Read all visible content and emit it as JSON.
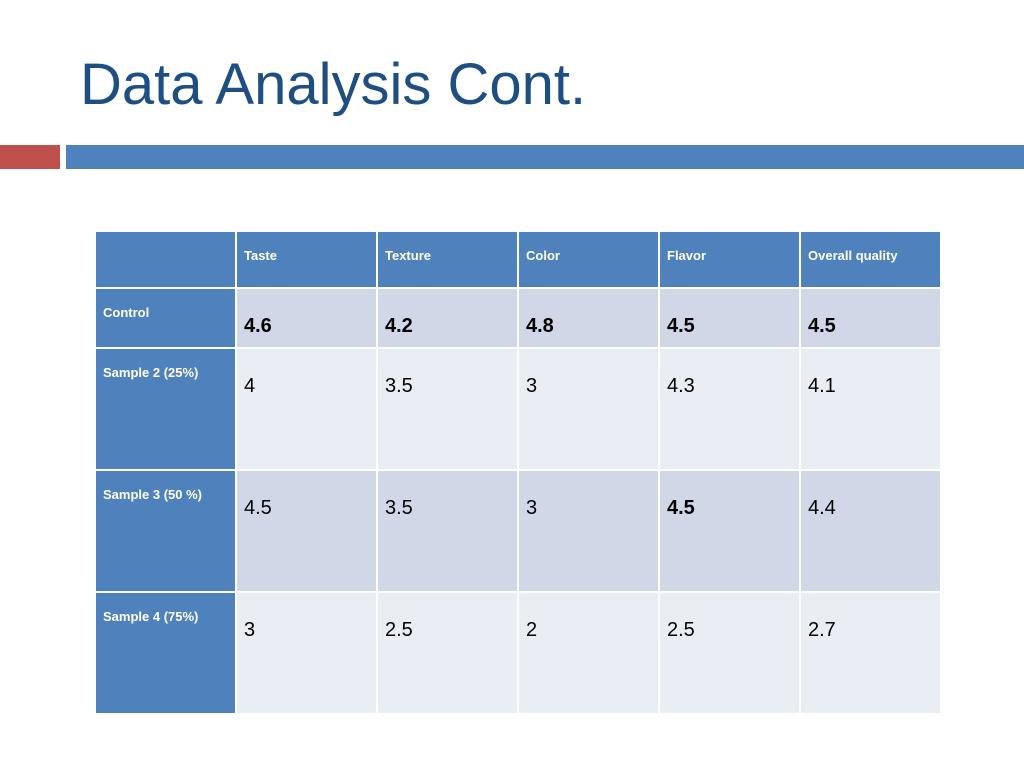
{
  "title": "Data Analysis Cont.",
  "colors": {
    "title": "#1f4e83",
    "accent_red": "#c0504d",
    "accent_blue": "#4f81bd",
    "row_dark": "#d0d8e8",
    "row_light": "#e9edf4"
  },
  "table": {
    "corner": "",
    "columns": [
      "Taste",
      "Texture",
      "Color",
      "Flavor",
      "Overall quality"
    ],
    "rows": [
      {
        "label": "Control",
        "values": [
          "4.6",
          "4.2",
          "4.8",
          "4.5",
          "4.5"
        ],
        "bold": [
          true,
          true,
          true,
          true,
          true
        ]
      },
      {
        "label": "Sample 2 (25%)",
        "values": [
          "4",
          "3.5",
          "3",
          "4.3",
          "4.1"
        ],
        "bold": [
          false,
          false,
          false,
          false,
          false
        ]
      },
      {
        "label": "Sample 3 (50 %)",
        "values": [
          "4.5",
          "3.5",
          "3",
          "4.5",
          "4.4"
        ],
        "bold": [
          false,
          false,
          false,
          true,
          false
        ]
      },
      {
        "label": "Sample 4 (75%)",
        "values": [
          "3",
          "2.5",
          "2",
          "2.5",
          "2.7"
        ],
        "bold": [
          false,
          false,
          false,
          false,
          false
        ]
      }
    ]
  }
}
